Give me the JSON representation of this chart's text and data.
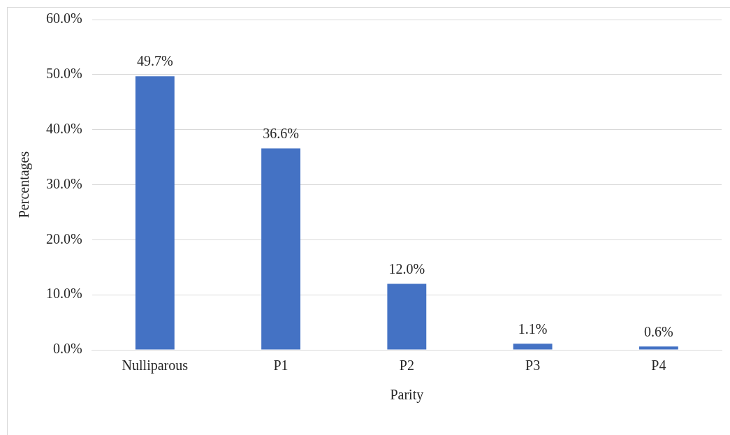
{
  "chart_data": {
    "type": "bar",
    "xlabel": "Parity",
    "ylabel": "Percentages",
    "categories": [
      "Nulliparous",
      "P1",
      "P2",
      "P3",
      "P4"
    ],
    "values": [
      49.7,
      36.6,
      12.0,
      1.1,
      0.6
    ],
    "value_labels": [
      "49.7%",
      "36.6%",
      "12.0%",
      "1.1%",
      "0.6%"
    ],
    "color": "#4472c4",
    "ylim": [
      0,
      60
    ],
    "yticks": [
      {
        "value": 0,
        "label": "0.0%"
      },
      {
        "value": 10,
        "label": "10.0%"
      },
      {
        "value": 20,
        "label": "20.0%"
      },
      {
        "value": 30,
        "label": "30.0%"
      },
      {
        "value": 40,
        "label": "40.0%"
      },
      {
        "value": 50,
        "label": "50.0%"
      },
      {
        "value": 60,
        "label": "60.0%"
      }
    ],
    "grid": "y",
    "legend": false
  }
}
